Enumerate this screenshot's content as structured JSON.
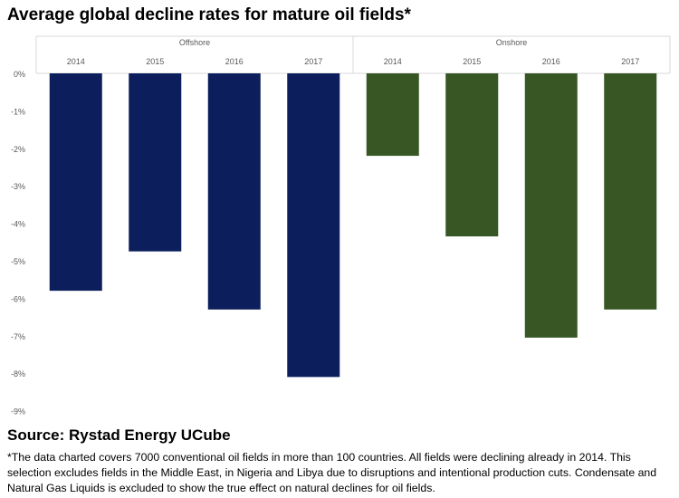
{
  "title": "Average global decline rates for mature oil fields*",
  "source": "Source: Rystad Energy UCube",
  "footnote": "*The data charted covers 7000 conventional oil fields in more than 100 countries. All fields were declining already in 2014. This selection excludes fields in the Middle East, in Nigeria and Libya due to disruptions and intentional production cuts. Condensate and Natural Gas Liquids is excluded to show the true effect on natural declines for oil fields.",
  "chart_data": {
    "type": "bar",
    "title": "Average global decline rates for mature oil fields*",
    "xlabel": "",
    "ylabel": "",
    "ylim": [
      -9,
      0
    ],
    "yticks": [
      0,
      -1,
      -2,
      -3,
      -4,
      -5,
      -6,
      -7,
      -8,
      -9
    ],
    "ytick_labels": [
      "0%",
      "-1%",
      "-2%",
      "-3%",
      "-4%",
      "-5%",
      "-6%",
      "-7%",
      "-8%",
      "-9%"
    ],
    "grid": false,
    "categories": [
      "2014",
      "2015",
      "2016",
      "2017",
      "2014",
      "2015",
      "2016",
      "2017"
    ],
    "groups": [
      {
        "name": "Offshore",
        "color": "#0c1f5c",
        "categories": [
          "2014",
          "2015",
          "2016",
          "2017"
        ],
        "values": [
          -5.8,
          -4.75,
          -6.3,
          -8.1
        ]
      },
      {
        "name": "Onshore",
        "color": "#375623",
        "categories": [
          "2014",
          "2015",
          "2016",
          "2017"
        ],
        "values": [
          -2.2,
          -4.35,
          -7.05,
          -6.3
        ]
      }
    ]
  }
}
